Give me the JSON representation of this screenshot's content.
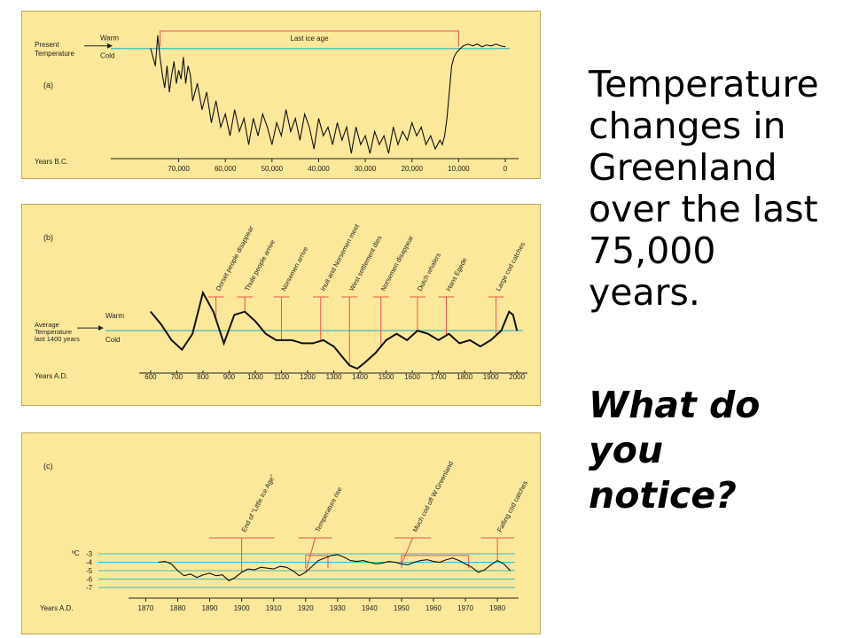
{
  "side": {
    "title": "Temperature changes in Greenland over the last 75,000 years.",
    "title_lines": [
      "Temperature",
      "changes in",
      "Greenland",
      "over the last",
      "75,000",
      "years."
    ],
    "question": "What do you notice?",
    "question_lines": [
      "What do you",
      "notice?"
    ]
  },
  "colors": {
    "panel_bg": "#fbe89a",
    "reference_line": "#3fb8c4",
    "trace": "#111111",
    "annotation": "#e8554a"
  },
  "chart_data": [
    {
      "id": "a",
      "type": "line",
      "panel_label": "(a)",
      "xlabel": "Years B.C.",
      "ylabel_lines": [
        "Present",
        "Temperature"
      ],
      "warm_label": "Warm",
      "cold_label": "Cold",
      "xlim": [
        76000,
        0
      ],
      "ylim": [
        -12,
        2
      ],
      "x_ticks": [
        70000,
        60000,
        50000,
        40000,
        30000,
        20000,
        10000,
        0
      ],
      "x_tick_labels": [
        "70,000",
        "60,000",
        "50,000",
        "40,000",
        "30,000",
        "20,000",
        "10,000",
        "0"
      ],
      "reference_value": 0,
      "series": [
        {
          "x": [
            76000,
            75000,
            74500,
            74000,
            73500,
            73000,
            72500,
            72000,
            71500,
            71000,
            70500,
            70000,
            69500,
            69000,
            68500,
            68000,
            67500,
            67000,
            66000,
            65000,
            64000,
            63000,
            62000,
            61000,
            60000,
            59000,
            58000,
            57000,
            56000,
            55000,
            54000,
            53000,
            52000,
            51000,
            50000,
            49000,
            48000,
            47000,
            46000,
            45000,
            44000,
            43000,
            42000,
            41000,
            40000,
            39000,
            38000,
            37000,
            36000,
            35000,
            34000,
            33000,
            32000,
            31000,
            30000,
            29000,
            28000,
            27000,
            26000,
            25000,
            24000,
            23000,
            22000,
            21000,
            20000,
            19000,
            18000,
            17000,
            16000,
            15000,
            14000,
            13500,
            13000,
            12500,
            12000,
            11500,
            11000,
            10500,
            10000,
            9000,
            8000,
            7000,
            6000,
            5000,
            4000,
            3000,
            2000,
            1000,
            0
          ],
          "y": [
            0,
            -2,
            1.5,
            -1,
            -3,
            -4.5,
            -2,
            -5,
            -3,
            -1.5,
            -4,
            -2.5,
            -3.5,
            -1,
            -4,
            -2,
            -3,
            -6,
            -4,
            -7,
            -5,
            -8.5,
            -6,
            -9,
            -7.5,
            -10,
            -7,
            -9.5,
            -8,
            -11,
            -8,
            -10,
            -7.5,
            -9,
            -11,
            -8.5,
            -10,
            -7,
            -9.5,
            -8,
            -10.5,
            -7.5,
            -9,
            -11.5,
            -8,
            -10,
            -9,
            -11,
            -8.5,
            -10.5,
            -9,
            -12,
            -9,
            -11,
            -10,
            -12,
            -9.5,
            -11,
            -10,
            -12,
            -9,
            -11,
            -9.5,
            -10.5,
            -8.5,
            -10,
            -9,
            -11,
            -10,
            -11.5,
            -10.5,
            -11,
            -10,
            -8,
            -5,
            -2,
            -1,
            -0.5,
            -0.2,
            0.3,
            0.5,
            0.3,
            0.5,
            0.2,
            0.4,
            0.3,
            0.5,
            0.3,
            0.2
          ]
        }
      ],
      "annotations": [
        {
          "label": "Last ice age",
          "from": 74000,
          "to": 10000
        }
      ]
    },
    {
      "id": "b",
      "type": "line",
      "panel_label": "(b)",
      "xlabel": "Years A.D.",
      "ylabel_lines": [
        "Average",
        "Temperature",
        "last 1400 years"
      ],
      "warm_label": "Warm",
      "cold_label": "Cold",
      "xlim": [
        580,
        2040
      ],
      "ylim": [
        -1.2,
        1.6
      ],
      "x_ticks": [
        600,
        700,
        800,
        900,
        1000,
        1100,
        1200,
        1300,
        1400,
        1500,
        1600,
        1700,
        1800,
        1900,
        2000
      ],
      "x_tick_labels": [
        "600",
        "700",
        "800",
        "900",
        "1000",
        "1100",
        "1200",
        "1300",
        "1400",
        "1500",
        "1600",
        "1700",
        "1800",
        "1900",
        "2000"
      ],
      "reference_value": 0,
      "series": [
        {
          "x": [
            600,
            640,
            680,
            720,
            760,
            800,
            840,
            880,
            920,
            960,
            1000,
            1040,
            1080,
            1100,
            1140,
            1180,
            1220,
            1260,
            1300,
            1330,
            1360,
            1390,
            1420,
            1460,
            1500,
            1540,
            1580,
            1620,
            1660,
            1700,
            1740,
            1780,
            1820,
            1860,
            1900,
            1940,
            1970,
            1985,
            2000
          ],
          "y": [
            0.6,
            0.2,
            -0.3,
            -0.6,
            -0.1,
            1.2,
            0.6,
            -0.4,
            0.5,
            0.6,
            0.3,
            -0.1,
            -0.3,
            -0.3,
            -0.3,
            -0.4,
            -0.4,
            -0.3,
            -0.5,
            -0.8,
            -1.1,
            -1.2,
            -1.0,
            -0.7,
            -0.3,
            -0.1,
            -0.3,
            0.0,
            -0.1,
            -0.3,
            -0.1,
            -0.4,
            -0.3,
            -0.5,
            -0.3,
            0.0,
            0.6,
            0.5,
            0.0
          ]
        }
      ],
      "annotations": [
        {
          "label": "Dorset people disappear",
          "year": 850,
          "bar_from": 820,
          "bar_to": 880
        },
        {
          "label": "Thule people arrive",
          "year": 960,
          "bar_from": 930,
          "bar_to": 990
        },
        {
          "label": "Norsemen arrive",
          "year": 1100,
          "bar_from": 1070,
          "bar_to": 1130
        },
        {
          "label": "Inuit and Norsemen meet",
          "year": 1250,
          "bar_from": 1220,
          "bar_to": 1280
        },
        {
          "label": "West settlement dies",
          "year": 1360,
          "bar_from": 1330,
          "bar_to": 1390
        },
        {
          "label": "Norsemen disappear",
          "year": 1480,
          "bar_from": 1450,
          "bar_to": 1510
        },
        {
          "label": "Dutch whalers",
          "year": 1620,
          "bar_from": 1590,
          "bar_to": 1650
        },
        {
          "label": "Hans Egede",
          "year": 1730,
          "bar_from": 1700,
          "bar_to": 1760
        },
        {
          "label": "Large cod catches",
          "year": 1920,
          "bar_from": 1890,
          "bar_to": 1950
        }
      ]
    },
    {
      "id": "c",
      "type": "line",
      "panel_label": "(c)",
      "xlabel": "Years A.D.",
      "ylabel": "ºC",
      "xlim": [
        1866,
        1988
      ],
      "ylim": [
        -7.3,
        -2.6
      ],
      "x_ticks": [
        1870,
        1880,
        1890,
        1900,
        1910,
        1920,
        1930,
        1940,
        1950,
        1960,
        1970,
        1980
      ],
      "x_tick_labels": [
        "1870",
        "1880",
        "1890",
        "1900",
        "1910",
        "1920",
        "1930",
        "1940",
        "1950",
        "1960",
        "1970",
        "1980"
      ],
      "y_ticks": [
        -3,
        -4,
        -5,
        -6,
        -7
      ],
      "y_tick_labels": [
        "-3",
        "-4",
        "-5",
        "-6",
        "-7"
      ],
      "series": [
        {
          "x": [
            1874,
            1876,
            1878,
            1880,
            1882,
            1884,
            1886,
            1888,
            1890,
            1892,
            1894,
            1896,
            1898,
            1900,
            1902,
            1904,
            1906,
            1908,
            1910,
            1912,
            1914,
            1916,
            1918,
            1920,
            1922,
            1924,
            1926,
            1928,
            1930,
            1932,
            1934,
            1936,
            1938,
            1940,
            1942,
            1944,
            1946,
            1948,
            1950,
            1952,
            1954,
            1956,
            1958,
            1960,
            1962,
            1964,
            1966,
            1968,
            1970,
            1972,
            1974,
            1976,
            1978,
            1980,
            1982,
            1984
          ],
          "y": [
            -4.0,
            -3.9,
            -4.2,
            -5.0,
            -5.6,
            -5.4,
            -5.8,
            -5.5,
            -5.3,
            -5.6,
            -5.5,
            -6.2,
            -5.8,
            -5.2,
            -4.8,
            -4.9,
            -4.6,
            -4.7,
            -4.8,
            -4.5,
            -4.6,
            -5.0,
            -5.6,
            -5.2,
            -4.5,
            -3.8,
            -3.5,
            -3.2,
            -3.1,
            -3.4,
            -3.8,
            -3.9,
            -3.8,
            -4.0,
            -4.2,
            -4.1,
            -3.9,
            -4.0,
            -4.2,
            -4.3,
            -4.0,
            -3.8,
            -3.7,
            -3.9,
            -4.0,
            -3.7,
            -3.5,
            -3.8,
            -4.2,
            -4.6,
            -5.2,
            -4.9,
            -4.3,
            -3.8,
            -4.2,
            -5.0
          ]
        }
      ],
      "annotations": [
        {
          "label": "End of \"Little Ice Age\"",
          "year": 1900,
          "bar_from": 1892,
          "bar_to": 1908
        },
        {
          "label": "Temperature rise",
          "year": 1920,
          "bar_from": 1920,
          "bar_to": 1926
        },
        {
          "label": "Much cod off W Greenland",
          "year": 1950,
          "bar_from": 1950,
          "bar_to": 1957
        },
        {
          "label": "Falling cod catches",
          "year": 1980,
          "bar_from": 1977,
          "bar_to": 1983
        }
      ]
    }
  ]
}
